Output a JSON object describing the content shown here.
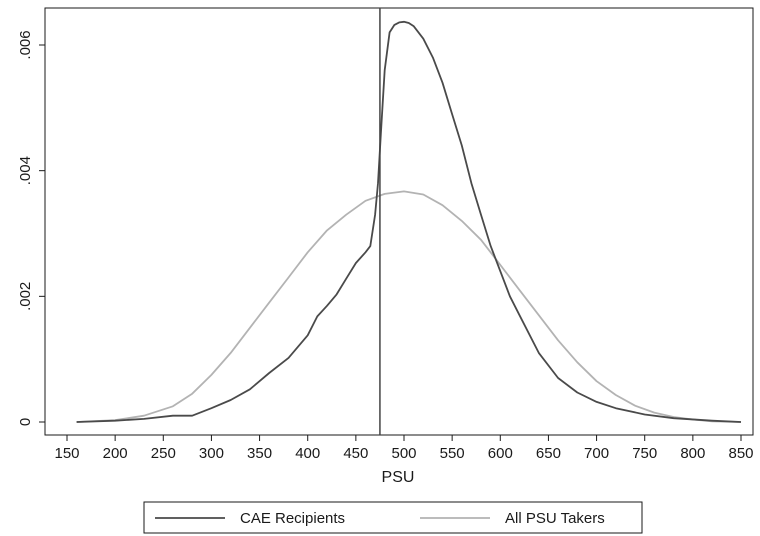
{
  "chart_data": {
    "type": "line",
    "title": "",
    "xlabel": "PSU",
    "ylabel": "",
    "xlim": [
      150,
      850
    ],
    "ylim": [
      0,
      0.0064
    ],
    "x_ticks": [
      150,
      200,
      250,
      300,
      350,
      400,
      450,
      500,
      550,
      600,
      650,
      700,
      750,
      800,
      850
    ],
    "x_tick_labels": [
      "150",
      "200",
      "250",
      "300",
      "350",
      "400",
      "450",
      "500",
      "550",
      "600",
      "650",
      "700",
      "750",
      "800",
      "850"
    ],
    "y_ticks": [
      0,
      0.002,
      0.004,
      0.006
    ],
    "y_tick_labels": [
      "0",
      ".002",
      ".004",
      ".006"
    ],
    "grid": false,
    "legend_position": "bottom",
    "reference_line": {
      "x": 475
    },
    "series": [
      {
        "name": "CAE Recipients",
        "color": "#4a4a4a",
        "x": [
          160,
          200,
          230,
          260,
          280,
          300,
          320,
          340,
          360,
          380,
          400,
          410,
          420,
          430,
          440,
          450,
          460,
          465,
          470,
          473,
          476,
          480,
          485,
          490,
          495,
          500,
          505,
          510,
          520,
          530,
          540,
          550,
          560,
          570,
          580,
          590,
          600,
          610,
          620,
          640,
          660,
          680,
          700,
          720,
          750,
          780,
          820,
          850
        ],
        "y": [
          0,
          2e-05,
          5e-05,
          0.0001,
          0.0001,
          0.00022,
          0.00035,
          0.00052,
          0.00078,
          0.00102,
          0.00138,
          0.00168,
          0.00185,
          0.00203,
          0.00228,
          0.00253,
          0.0027,
          0.0028,
          0.0033,
          0.0038,
          0.0046,
          0.0056,
          0.0062,
          0.00632,
          0.00636,
          0.00637,
          0.00635,
          0.0063,
          0.0061,
          0.0058,
          0.0054,
          0.0049,
          0.0044,
          0.0038,
          0.0033,
          0.0028,
          0.0024,
          0.002,
          0.0017,
          0.0011,
          0.0007,
          0.00047,
          0.00032,
          0.00022,
          0.00012,
          6e-05,
          2e-05,
          0.0
        ]
      },
      {
        "name": "All PSU Takers",
        "color": "#b3b3b3",
        "x": [
          160,
          200,
          230,
          260,
          280,
          300,
          320,
          340,
          360,
          380,
          400,
          420,
          440,
          460,
          480,
          500,
          520,
          540,
          560,
          580,
          600,
          620,
          640,
          660,
          680,
          700,
          720,
          740,
          760,
          780,
          800,
          820,
          850
        ],
        "y": [
          0.0,
          3e-05,
          0.0001,
          0.00025,
          0.00045,
          0.00075,
          0.0011,
          0.0015,
          0.0019,
          0.0023,
          0.0027,
          0.00305,
          0.0033,
          0.00352,
          0.00363,
          0.00367,
          0.00362,
          0.00345,
          0.0032,
          0.0029,
          0.0025,
          0.0021,
          0.0017,
          0.0013,
          0.00095,
          0.00065,
          0.00043,
          0.00026,
          0.00015,
          8e-05,
          4e-05,
          1e-05,
          0.0
        ]
      }
    ]
  }
}
